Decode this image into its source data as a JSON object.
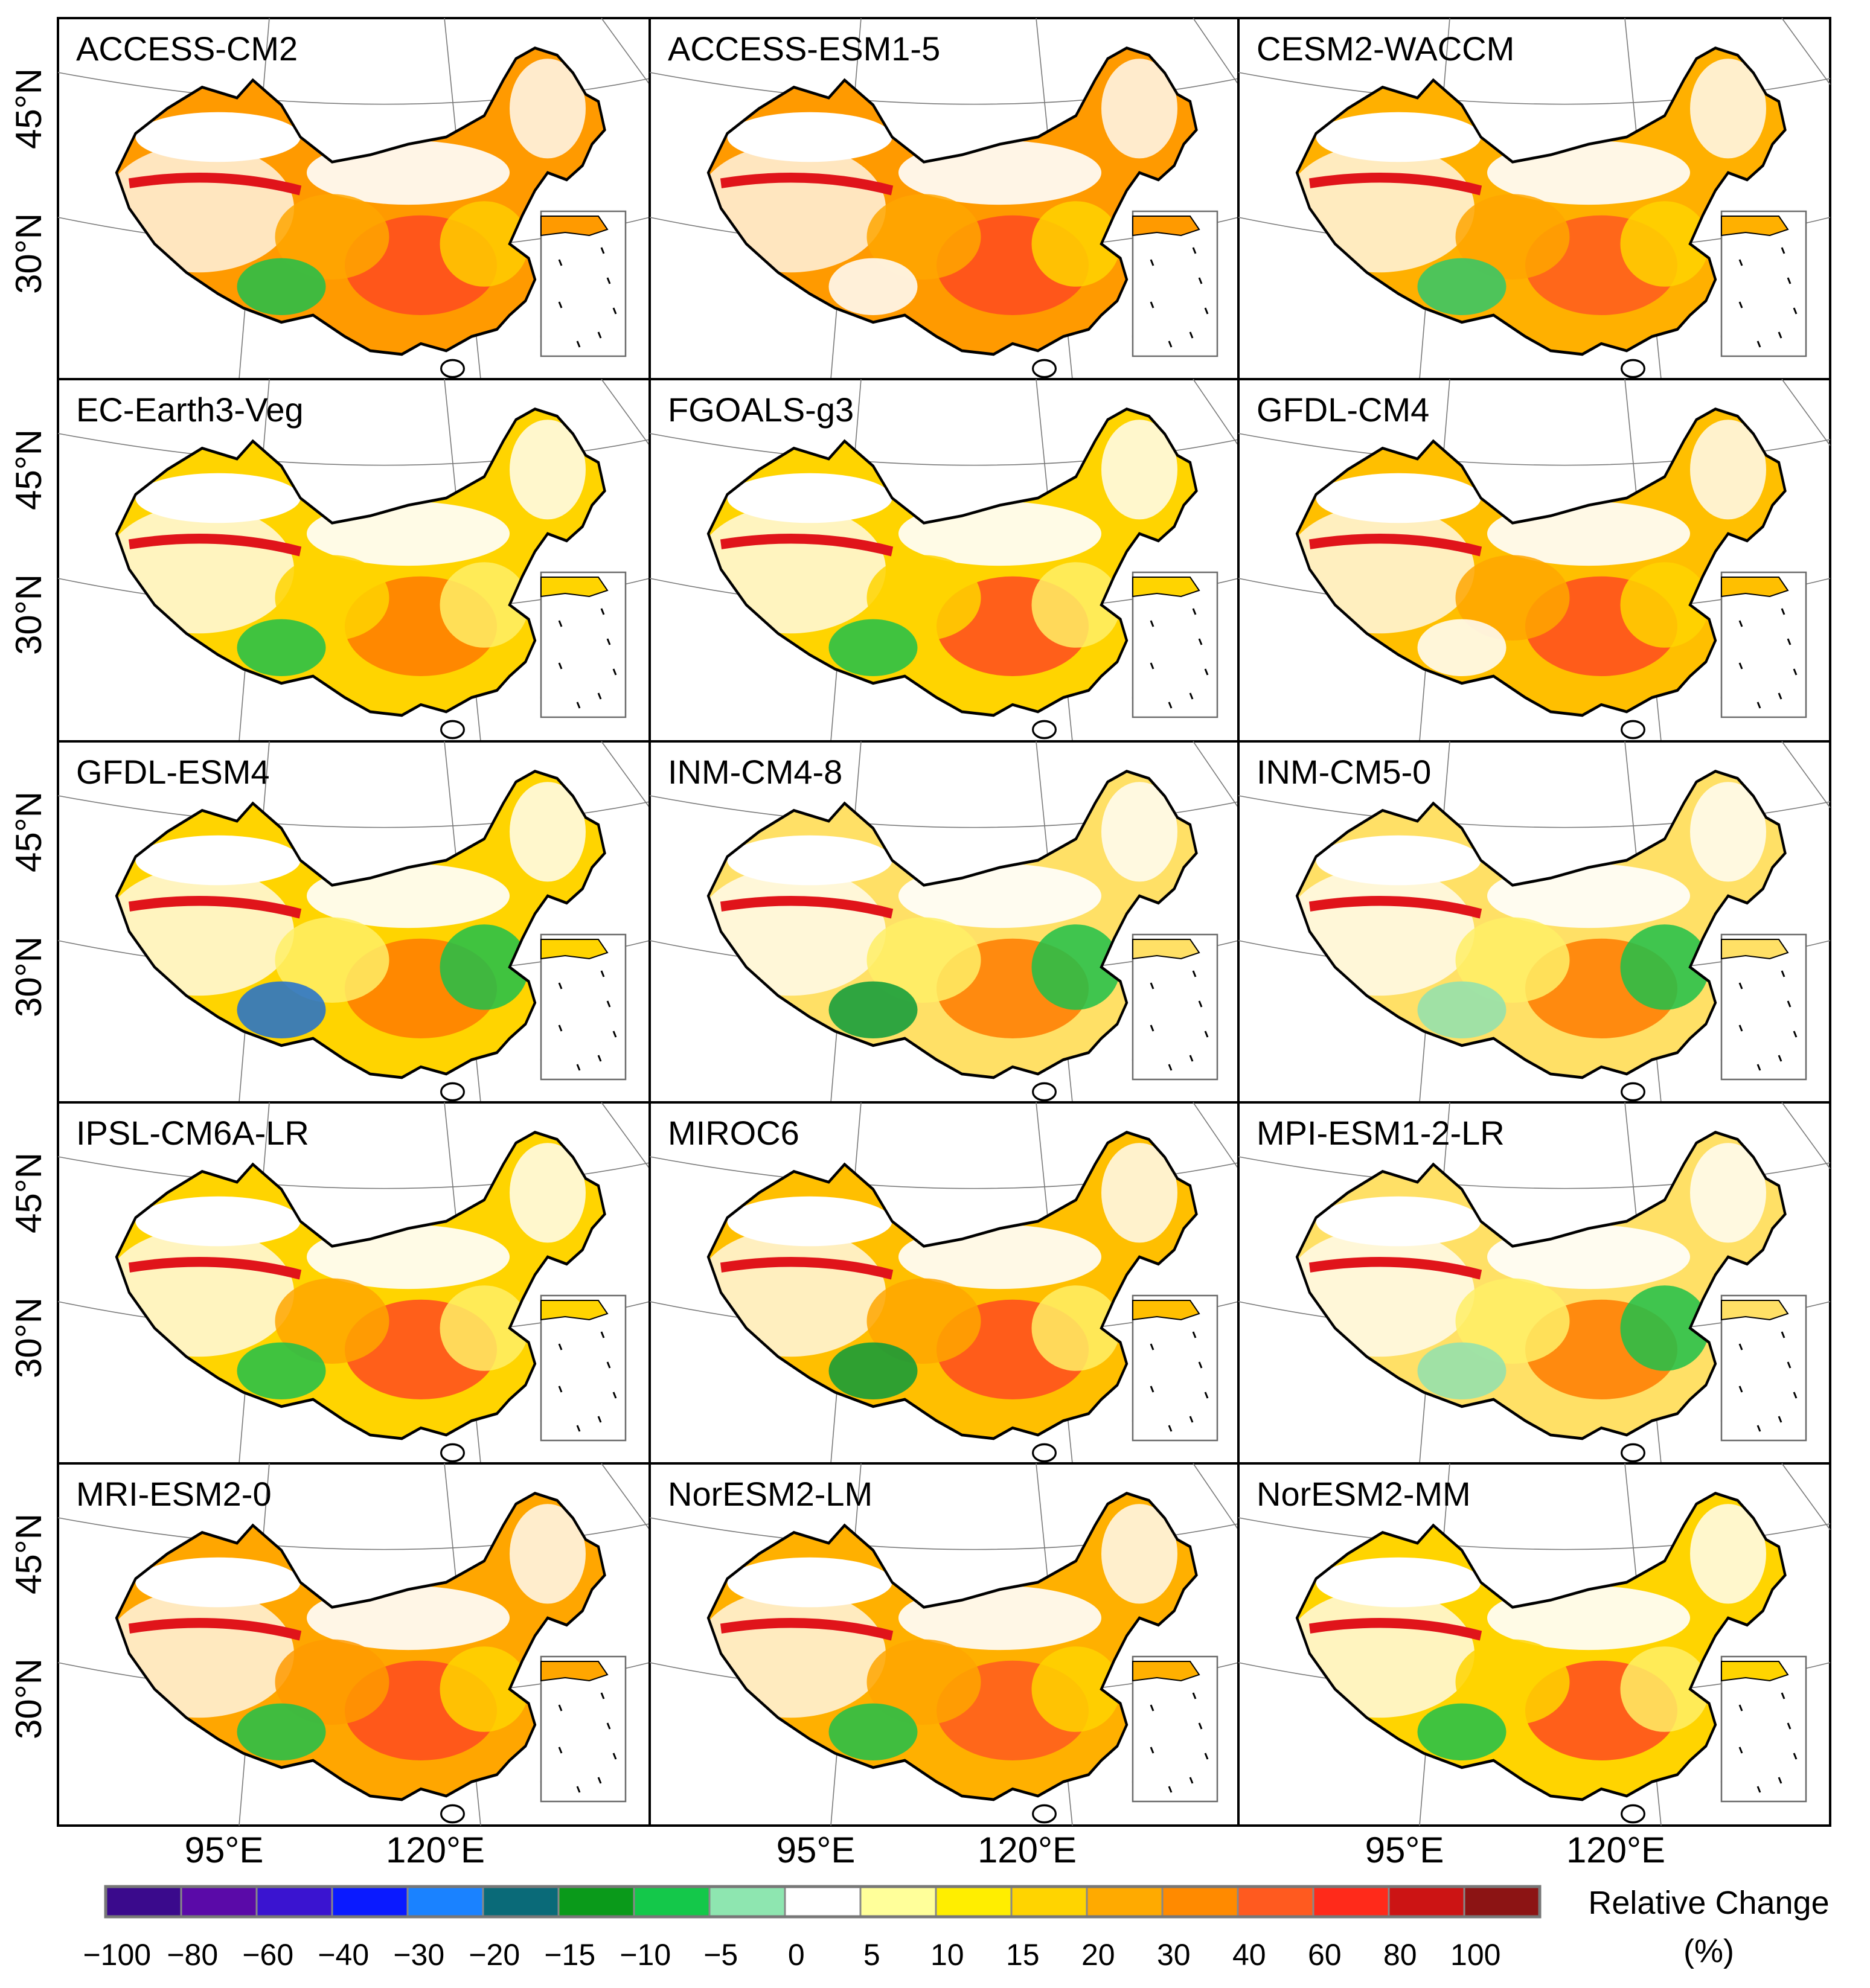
{
  "figure": {
    "panels": [
      {
        "model": "ACCESS-CM2",
        "tone": "warm",
        "accent": "#ff9a00",
        "patches": [
          "#ff4a1f",
          "#ffa600",
          "#ffcc00",
          "#1fbf4a"
        ]
      },
      {
        "model": "ACCESS-ESM1-5",
        "tone": "warm",
        "accent": "#ff9a00",
        "patches": [
          "#ff4a1f",
          "#ffa600",
          "#ffd400",
          "#ffffff"
        ]
      },
      {
        "model": "CESM2-WACCM",
        "tone": "warm",
        "accent": "#ffb000",
        "patches": [
          "#ff5a1f",
          "#ffa600",
          "#ffd400",
          "#2fc86a"
        ]
      },
      {
        "model": "EC-Earth3-Veg",
        "tone": "mixed",
        "accent": "#ffd400",
        "patches": [
          "#ff7a00",
          "#ffd400",
          "#ffee66",
          "#1fbf4a"
        ]
      },
      {
        "model": "FGOALS-g3",
        "tone": "mixed",
        "accent": "#ffd400",
        "patches": [
          "#ff4a1f",
          "#ffd400",
          "#ffee66",
          "#1fbf4a"
        ]
      },
      {
        "model": "GFDL-CM4",
        "tone": "warm",
        "accent": "#ffbf00",
        "patches": [
          "#ff4a1f",
          "#ffa600",
          "#ffd400",
          "#ffffff"
        ]
      },
      {
        "model": "GFDL-ESM4",
        "tone": "mixed",
        "accent": "#ffd400",
        "patches": [
          "#ff7a00",
          "#ffee66",
          "#1fbf4a",
          "#1f6fd0"
        ]
      },
      {
        "model": "INM-CM4-8",
        "tone": "cool",
        "accent": "#ffe066",
        "patches": [
          "#ff7a00",
          "#ffee66",
          "#1fbf4a",
          "#0a9a3a"
        ]
      },
      {
        "model": "INM-CM5-0",
        "tone": "cool",
        "accent": "#ffe066",
        "patches": [
          "#ff7a00",
          "#ffee66",
          "#1fbf4a",
          "#8fe0b0"
        ]
      },
      {
        "model": "IPSL-CM6A-LR",
        "tone": "mixed",
        "accent": "#ffd400",
        "patches": [
          "#ff4a1f",
          "#ffa600",
          "#ffee66",
          "#1fbf4a"
        ]
      },
      {
        "model": "MIROC6",
        "tone": "warm",
        "accent": "#ffbf00",
        "patches": [
          "#ff4a1f",
          "#ffa600",
          "#ffee66",
          "#0a9a3a"
        ]
      },
      {
        "model": "MPI-ESM1-2-LR",
        "tone": "cool",
        "accent": "#ffe066",
        "patches": [
          "#ff7a00",
          "#ffee66",
          "#1fbf4a",
          "#8fe0b0"
        ]
      },
      {
        "model": "MRI-ESM2-0",
        "tone": "warm",
        "accent": "#ffa600",
        "patches": [
          "#ff4a1f",
          "#ff9a00",
          "#ffd400",
          "#1fbf4a"
        ]
      },
      {
        "model": "NorESM2-LM",
        "tone": "warm",
        "accent": "#ffb000",
        "patches": [
          "#ff5a1f",
          "#ffa600",
          "#ffd400",
          "#1fbf4a"
        ]
      },
      {
        "model": "NorESM2-MM",
        "tone": "mixed",
        "accent": "#ffd400",
        "patches": [
          "#ff4a1f",
          "#ffd400",
          "#ffee66",
          "#1fbf4a"
        ]
      }
    ],
    "lat_labels": [
      "45°N",
      "30°N"
    ],
    "lon_labels": [
      "95°E",
      "120°E"
    ]
  },
  "legend": {
    "title_line1": "Relative Change",
    "title_line2": "(%)",
    "colors": [
      "#3a0a8c",
      "#5a0aa8",
      "#3a14d0",
      "#0a1aff",
      "#1a82ff",
      "#0a6a78",
      "#0a9a1a",
      "#14c84a",
      "#8ee6b0",
      "#ffffff",
      "#ffff9a",
      "#ffee00",
      "#ffd400",
      "#ffaa00",
      "#ff8a00",
      "#ff5a1f",
      "#ff2a1a",
      "#cc1414",
      "#8c1414"
    ],
    "ticks": [
      "−100",
      "−80",
      "−60",
      "−40",
      "−30",
      "−20",
      "−15",
      "−10",
      "−5",
      "0",
      "5",
      "10",
      "15",
      "20",
      "30",
      "40",
      "60",
      "80",
      "100"
    ]
  }
}
